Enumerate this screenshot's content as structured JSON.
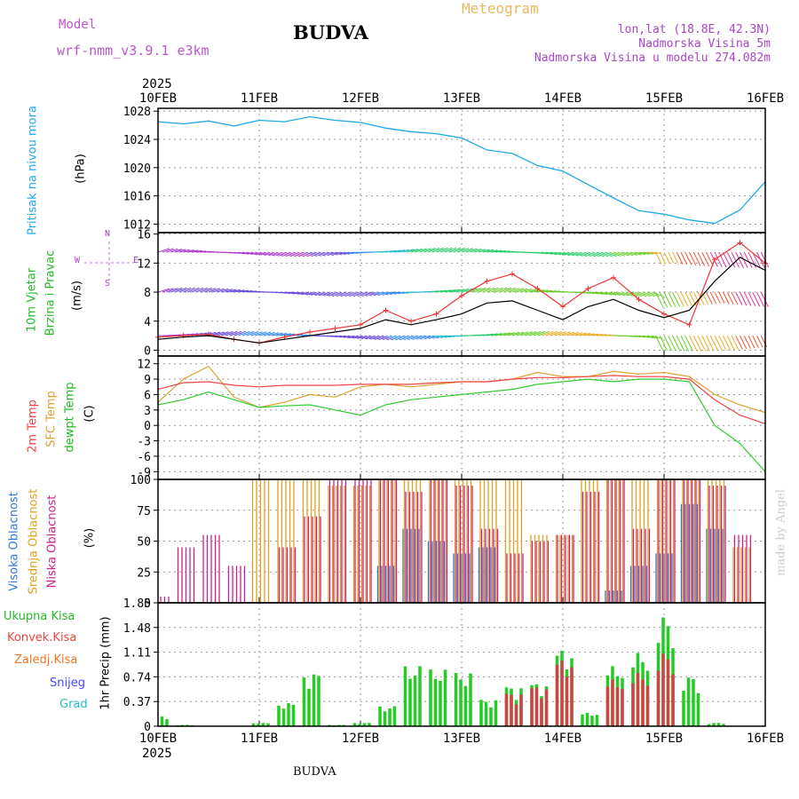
{
  "header": {
    "model_label": "Model",
    "model_name": "wrf-nmm_v3.9.1  e3km",
    "station": "BUDVA",
    "meteogram": "Meteogram",
    "lonlat": "lon,lat (18.8E, 42.3N)",
    "altitude": "Nadmorska Visina 5m",
    "model_altitude": "Nadmorska Visina u modelu 274.082m"
  },
  "footer": {
    "station": "BUDVA",
    "credit": "made by Angel"
  },
  "x_axis": {
    "year": "2025",
    "labels": [
      "10FEB",
      "11FEB",
      "12FEB",
      "13FEB",
      "14FEB",
      "15FEB",
      "16FEB"
    ]
  },
  "colors": {
    "pressure": "#1fa8e8",
    "wind_speed": "#000000",
    "gust": "#ee3333",
    "t2m": "#ee4444",
    "tsfc": "#e0a030",
    "dewpt": "#33cc33",
    "high_cloud": "#3377dd",
    "mid_cloud": "#e0a020",
    "low_cloud": "#cc2288",
    "precip_total": "#22cc22",
    "precip_conv": "#cc4444",
    "graupel": "#33cccc",
    "snow": "#4444ff"
  },
  "panels": {
    "pressure": {
      "label": "Pritisak na nivou mora",
      "unit": "(hPa)"
    },
    "wind": {
      "label": "10m Vjetar",
      "label2": "Brzina i Pravac",
      "unit": "(m/s)",
      "compass": {
        "n": "N",
        "w": "W",
        "e": "E",
        "s": "S"
      }
    },
    "temperature": {
      "label_t2m": "2m Temp",
      "label_sfc": "SFC Temp",
      "label_dew": "dewpt Temp",
      "unit": "(C)"
    },
    "cloud": {
      "label_high": "Visoka Oblacnost",
      "label_mid": "Srednja Oblacnost",
      "label_low": "Niska Oblacnost",
      "unit": "(%)"
    },
    "precip": {
      "unit_label": "1hr Precip (mm)",
      "legend": [
        "Ukupna Kisa",
        "Konvek.Kisa",
        "Zaledj.Kisa",
        "Snijeg",
        "Grad"
      ]
    }
  },
  "chart_data": [
    {
      "type": "line",
      "title": "Pritisak na nivou mora",
      "ylabel": "(hPa)",
      "ylim": [
        1010.8,
        1028.4
      ],
      "yticks": [
        1012,
        1016,
        1020,
        1024,
        1028
      ],
      "x": [
        0,
        0.25,
        0.5,
        0.75,
        1,
        1.25,
        1.5,
        1.75,
        2,
        2.25,
        2.5,
        2.75,
        3,
        3.25,
        3.5,
        3.75,
        4,
        4.25,
        4.5,
        4.75,
        5,
        5.25,
        5.5,
        5.75,
        6
      ],
      "series": [
        {
          "name": "MSLP",
          "values": [
            1026.5,
            1026.2,
            1026.6,
            1025.9,
            1026.7,
            1026.5,
            1027.2,
            1026.7,
            1026.4,
            1025.6,
            1025.1,
            1024.8,
            1024.2,
            1022.5,
            1022.0,
            1020.3,
            1019.5,
            1017.6,
            1015.7,
            1013.9,
            1013.4,
            1012.6,
            1012.1,
            1014.0,
            1018.0
          ]
        }
      ]
    },
    {
      "type": "line",
      "title": "10m Vjetar Brzina i Pravac",
      "ylabel": "(m/s)",
      "ylim": [
        -0.8,
        16.2
      ],
      "yticks": [
        0,
        4,
        8,
        12,
        16
      ],
      "x": [
        0,
        0.25,
        0.5,
        0.75,
        1,
        1.25,
        1.5,
        1.75,
        2,
        2.25,
        2.5,
        2.75,
        3,
        3.25,
        3.5,
        3.75,
        4,
        4.25,
        4.5,
        4.75,
        5,
        5.25,
        5.5,
        5.75,
        6
      ],
      "series": [
        {
          "name": "Brzina",
          "values": [
            1.5,
            1.8,
            2.0,
            1.5,
            1.0,
            1.5,
            2.0,
            2.5,
            3.0,
            4.2,
            3.5,
            4.2,
            5.0,
            6.5,
            6.8,
            5.5,
            4.2,
            6.0,
            7.0,
            5.5,
            4.5,
            5.5,
            9.5,
            12.8,
            11.0
          ]
        },
        {
          "name": "Udari",
          "values": [
            1.8,
            2.0,
            2.2,
            1.5,
            1.0,
            1.8,
            2.5,
            3.0,
            3.5,
            5.5,
            4.0,
            5.0,
            7.5,
            9.5,
            10.5,
            8.5,
            6.0,
            8.5,
            10.0,
            7.0,
            5.0,
            3.5,
            12.5,
            14.8,
            12.0
          ]
        }
      ],
      "barb_rows_ms": [
        2,
        8,
        13.5
      ]
    },
    {
      "type": "line",
      "title": "Temperatura",
      "ylabel": "(C)",
      "ylim": [
        -10.5,
        13.5
      ],
      "yticks": [
        -9,
        -6,
        -3,
        0,
        3,
        6,
        9,
        12
      ],
      "x": [
        0,
        0.25,
        0.5,
        0.75,
        1,
        1.25,
        1.5,
        1.75,
        2,
        2.25,
        2.5,
        2.75,
        3,
        3.25,
        3.5,
        3.75,
        4,
        4.25,
        4.5,
        4.75,
        5,
        5.25,
        5.5,
        5.75,
        6
      ],
      "series": [
        {
          "name": "2m Temp",
          "values": [
            7.0,
            8.3,
            8.5,
            7.8,
            7.5,
            7.8,
            7.8,
            7.8,
            8.0,
            8.0,
            8.0,
            8.3,
            8.5,
            8.5,
            9.0,
            9.3,
            9.3,
            9.5,
            9.7,
            9.5,
            9.5,
            9.0,
            5.0,
            2.0,
            0.3
          ]
        },
        {
          "name": "SFC Temp",
          "values": [
            4.5,
            9.0,
            11.5,
            5.5,
            3.5,
            4.5,
            6.0,
            5.5,
            7.5,
            8.0,
            7.5,
            8.0,
            8.5,
            8.5,
            9.0,
            10.3,
            9.5,
            9.5,
            10.5,
            10.0,
            10.3,
            9.5,
            6.0,
            4.0,
            2.5
          ]
        },
        {
          "name": "dewpt Temp",
          "values": [
            4.0,
            5.0,
            6.5,
            5.0,
            3.5,
            3.8,
            4.0,
            3.0,
            2.0,
            4.0,
            5.0,
            5.5,
            6.0,
            6.5,
            7.0,
            8.0,
            8.5,
            9.0,
            8.5,
            9.0,
            9.0,
            8.5,
            0.0,
            -3.5,
            -9.0
          ]
        }
      ]
    },
    {
      "type": "bar",
      "title": "Oblacnost",
      "ylabel": "(%)",
      "ylim": [
        0,
        100
      ],
      "yticks": [
        0,
        25,
        50,
        75,
        100
      ],
      "x": [
        0,
        0.25,
        0.5,
        0.75,
        1,
        1.25,
        1.5,
        1.75,
        2,
        2.25,
        2.5,
        2.75,
        3,
        3.25,
        3.5,
        3.75,
        4,
        4.25,
        4.5,
        4.75,
        5,
        5.25,
        5.5,
        5.75,
        6
      ],
      "series": [
        {
          "name": "Visoka Oblacnost",
          "values": [
            0,
            0,
            0,
            0,
            0,
            0,
            0,
            0,
            0,
            30,
            60,
            50,
            40,
            45,
            0,
            0,
            0,
            0,
            10,
            30,
            40,
            80,
            60,
            0,
            0
          ]
        },
        {
          "name": "Srednja Oblacnost",
          "values": [
            0,
            0,
            0,
            0,
            100,
            100,
            100,
            95,
            95,
            100,
            100,
            100,
            100,
            100,
            100,
            55,
            55,
            100,
            100,
            100,
            100,
            100,
            100,
            45,
            0
          ]
        },
        {
          "name": "Niska Oblacnost",
          "values": [
            5,
            45,
            55,
            30,
            0,
            45,
            70,
            100,
            100,
            100,
            90,
            100,
            95,
            60,
            40,
            50,
            55,
            90,
            100,
            60,
            100,
            100,
            95,
            55,
            0
          ]
        }
      ]
    },
    {
      "type": "bar",
      "title": "1hr Precip",
      "ylabel": "(mm)",
      "ylim": [
        0,
        1.85
      ],
      "yticks": [
        0,
        0.37,
        0.74,
        1.11,
        1.48,
        1.85
      ],
      "x": [
        0,
        0.25,
        0.5,
        0.75,
        1,
        1.25,
        1.5,
        1.75,
        2,
        2.25,
        2.5,
        2.75,
        3,
        3.25,
        3.5,
        3.75,
        4,
        4.25,
        4.5,
        4.75,
        5,
        5.25,
        5.5,
        5.75,
        6
      ],
      "series": [
        {
          "name": "Ukupna Kisa",
          "values": [
            0.15,
            0.02,
            0,
            0,
            0.05,
            0.35,
            0.8,
            0.02,
            0.05,
            0.3,
            0.9,
            0.85,
            0.8,
            0.4,
            0.6,
            0.65,
            1.15,
            0.2,
            0.9,
            1.1,
            1.65,
            0.75,
            0.05,
            0,
            0
          ]
        },
        {
          "name": "Konvek.Kisa",
          "values": [
            0,
            0,
            0,
            0,
            0,
            0,
            0,
            0,
            0,
            0,
            0,
            0,
            0,
            0,
            0.5,
            0.6,
            1.0,
            0,
            0.7,
            0.8,
            1.1,
            0,
            0,
            0,
            0
          ]
        }
      ]
    }
  ]
}
